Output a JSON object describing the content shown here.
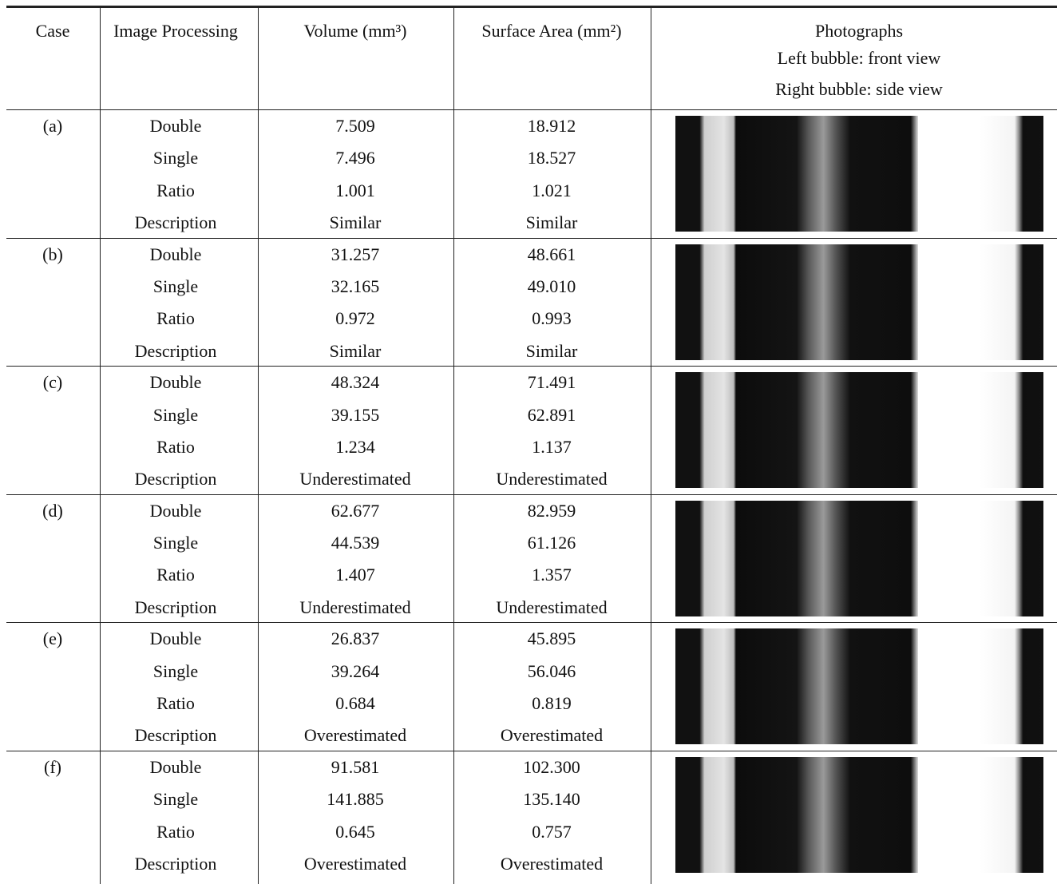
{
  "header": {
    "columns": [
      "Case",
      "Image Processing",
      "Volume (mm³)",
      "Surface Area (mm²)",
      "Photographs"
    ],
    "photo_caption": [
      "Left bubble: front view",
      "Right bubble: side view"
    ]
  },
  "table": {
    "cases": [
      {
        "label": "(a)",
        "rows": [
          [
            "Double",
            "7.509",
            "18.912"
          ],
          [
            "Single",
            "7.496",
            "18.527"
          ],
          [
            "Ratio",
            "1.001",
            "1.021"
          ],
          [
            "Description",
            "Similar",
            "Similar"
          ]
        ]
      },
      {
        "label": "(b)",
        "rows": [
          [
            "Double",
            "31.257",
            "48.661"
          ],
          [
            "Single",
            "32.165",
            "49.010"
          ],
          [
            "Ratio",
            "0.972",
            "0.993"
          ],
          [
            "Description",
            "Similar",
            "Similar"
          ]
        ]
      },
      {
        "label": "(c)",
        "rows": [
          [
            "Double",
            "48.324",
            "71.491"
          ],
          [
            "Single",
            "39.155",
            "62.891"
          ],
          [
            "Ratio",
            "1.234",
            "1.137"
          ],
          [
            "Description",
            "Underestimated",
            "Underestimated"
          ]
        ]
      },
      {
        "label": "(d)",
        "rows": [
          [
            "Double",
            "62.677",
            "82.959"
          ],
          [
            "Single",
            "44.539",
            "61.126"
          ],
          [
            "Ratio",
            "1.407",
            "1.357"
          ],
          [
            "Description",
            "Underestimated",
            "Underestimated"
          ]
        ]
      },
      {
        "label": "(e)",
        "rows": [
          [
            "Double",
            "26.837",
            "45.895"
          ],
          [
            "Single",
            "39.264",
            "56.046"
          ],
          [
            "Ratio",
            "0.684",
            "0.819"
          ],
          [
            "Description",
            "Overestimated",
            "Overestimated"
          ]
        ]
      },
      {
        "label": "(f)",
        "rows": [
          [
            "Double",
            "91.581",
            "102.300"
          ],
          [
            "Single",
            "141.885",
            "135.140"
          ],
          [
            "Ratio",
            "0.645",
            "0.757"
          ],
          [
            "Description",
            "Overestimated",
            "Overestimated"
          ]
        ]
      }
    ]
  }
}
